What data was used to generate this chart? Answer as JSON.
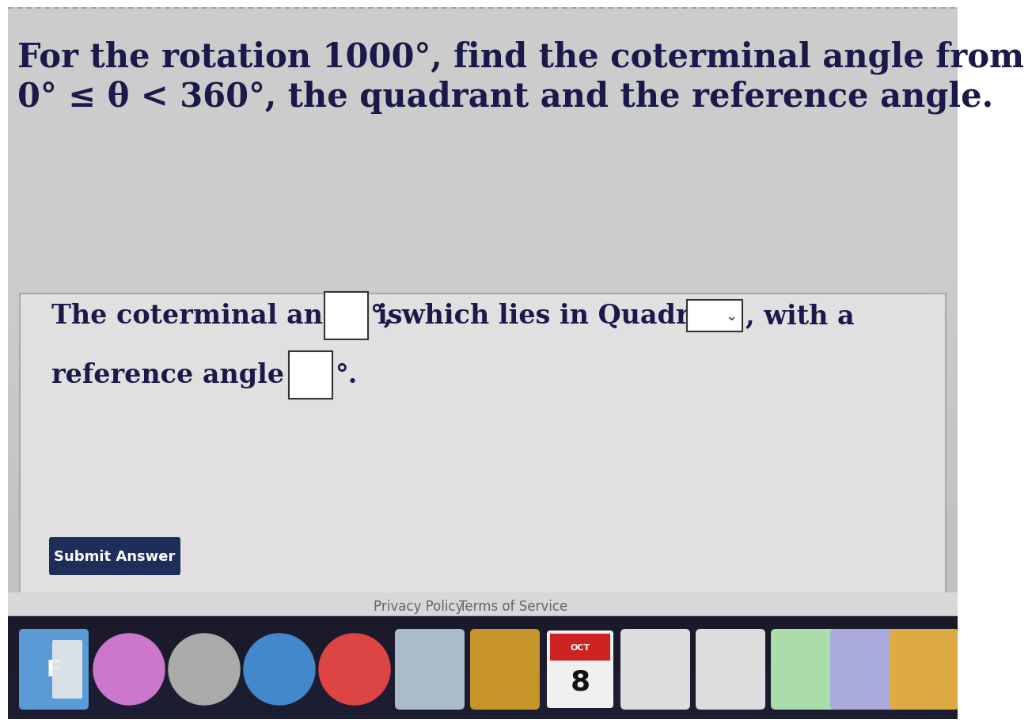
{
  "title_line1": "For the rotation 1000°, find the coterminal angle from",
  "title_line2": "0° ≤ θ < 360°, the quadrant and the reference angle.",
  "body_text1": "The coterminal angle is",
  "body_text2": "°, which lies in Quadrant",
  "body_text3": ", with a",
  "body_text4": "reference angle of",
  "body_text5": "°.",
  "button_text": "Submit Answer",
  "footer_text1": "Privacy Policy",
  "footer_text2": "Terms of Service",
  "bg_top_color": "#c5c5c5",
  "bg_card_color": "#e8e8e8",
  "bg_bottom_color": "#1a1a2e",
  "text_color": "#1a1a4a",
  "footer_text_color": "#666666",
  "button_bg_color": "#1e2d5a",
  "button_text_color": "#ffffff",
  "input_box_color": "#ffffff",
  "input_box_border": "#333333",
  "title_fontsize": 30,
  "body_fontsize": 24,
  "button_fontsize": 13
}
